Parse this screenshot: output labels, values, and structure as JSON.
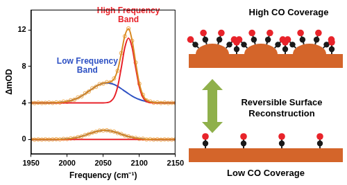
{
  "chart_data": {
    "type": "line",
    "x_label": "Frequency (cm⁻¹)",
    "y_label": "ΔmOD",
    "xlim": [
      1950,
      2150
    ],
    "xticks": [
      1950,
      2000,
      2050,
      2100,
      2150
    ],
    "ylim": [
      -1.6,
      14.2
    ],
    "yticks": [
      0,
      4,
      8,
      12
    ],
    "grid": false,
    "x": [
      1950,
      1955,
      1960,
      1965,
      1970,
      1975,
      1980,
      1985,
      1990,
      1995,
      2000,
      2005,
      2010,
      2015,
      2020,
      2025,
      2030,
      2035,
      2040,
      2045,
      2050,
      2055,
      2060,
      2065,
      2070,
      2075,
      2080,
      2085,
      2090,
      2095,
      2100,
      2105,
      2110,
      2115,
      2120,
      2125,
      2130,
      2135,
      2140,
      2145,
      2150
    ],
    "series": [
      {
        "type": "scatter",
        "marker": "open_circle",
        "color": "#f0a848",
        "values": [
          4.02,
          3.98,
          4.03,
          3.99,
          4.01,
          4.04,
          4.0,
          4.06,
          4.04,
          4.14,
          4.13,
          4.29,
          4.35,
          4.6,
          4.72,
          5.06,
          5.24,
          5.61,
          5.77,
          6.06,
          6.11,
          6.27,
          6.26,
          6.68,
          7.52,
          9.45,
          11.3,
          12.15,
          10.8,
          8.42,
          6.1,
          4.89,
          4.27,
          4.16,
          4.03,
          4.05,
          3.99,
          4.03,
          3.98,
          4.01,
          4.0
        ]
      },
      {
        "type": "scatter",
        "marker": "open_circle",
        "color": "#f0a848",
        "values": [
          0.02,
          -0.02,
          0.01,
          -0.01,
          0.02,
          -0.01,
          0.01,
          0.03,
          0.01,
          0.06,
          0.05,
          0.12,
          0.14,
          0.26,
          0.33,
          0.49,
          0.59,
          0.76,
          0.84,
          0.97,
          0.98,
          1.01,
          0.92,
          0.86,
          0.7,
          0.6,
          0.42,
          0.34,
          0.21,
          0.17,
          0.07,
          0.08,
          0.01,
          0.03,
          -0.01,
          0.02,
          -0.02,
          0.01,
          0.0,
          -0.01,
          0.01
        ]
      },
      {
        "type": "line",
        "line_style": "solid",
        "color": "#2f52c4",
        "values": [
          4.0,
          4.0,
          4.0,
          4.0,
          4.0,
          4.01,
          4.02,
          4.03,
          4.06,
          4.1,
          4.16,
          4.25,
          4.38,
          4.55,
          4.76,
          5.01,
          5.28,
          5.56,
          5.81,
          6.02,
          6.15,
          6.2,
          6.15,
          6.02,
          5.81,
          5.56,
          5.28,
          5.01,
          4.76,
          4.55,
          4.38,
          4.25,
          4.16,
          4.1,
          4.06,
          4.03,
          4.02,
          4.01,
          4.0,
          4.0,
          4.0
        ]
      },
      {
        "type": "line",
        "line_style": "solid",
        "color": "#e8232a",
        "values": [
          4.0,
          4.0,
          4.0,
          4.0,
          4.0,
          4.0,
          4.0,
          4.0,
          4.0,
          4.0,
          4.0,
          4.0,
          4.0,
          4.0,
          4.0,
          4.0,
          4.0,
          4.0,
          4.0,
          4.0,
          4.0,
          4.03,
          4.15,
          4.6,
          5.77,
          7.83,
          10.08,
          11.1,
          10.08,
          7.83,
          5.77,
          4.6,
          4.15,
          4.03,
          4.0,
          4.0,
          4.0,
          4.0,
          4.0,
          4.0,
          4.0
        ]
      },
      {
        "type": "line",
        "line_style": "solid",
        "color": "#2f52c4",
        "values": [
          0.0,
          0.0,
          0.0,
          0.0,
          0.0,
          0.0,
          0.01,
          0.01,
          0.02,
          0.04,
          0.06,
          0.1,
          0.16,
          0.24,
          0.35,
          0.47,
          0.61,
          0.74,
          0.86,
          0.95,
          1.0,
          0.99,
          0.94,
          0.84,
          0.72,
          0.58,
          0.44,
          0.32,
          0.23,
          0.15,
          0.09,
          0.06,
          0.03,
          0.02,
          0.01,
          0.0,
          0.0,
          0.0,
          0.0,
          0.0,
          0.0
        ]
      },
      {
        "type": "line",
        "line_style": "solid",
        "color": "#e8232a",
        "values": [
          0,
          0,
          0,
          0,
          0,
          0,
          0,
          0,
          0,
          0,
          0,
          0,
          0,
          0,
          0,
          0,
          0,
          0,
          0,
          0,
          0,
          0,
          0,
          0,
          0,
          0,
          0,
          0,
          0,
          0,
          0,
          0,
          0,
          0,
          0,
          0,
          0,
          0,
          0,
          0,
          0
        ]
      },
      {
        "type": "line",
        "line_style": "solid",
        "color": "#d98a22",
        "values": [
          4.0,
          4.0,
          4.0,
          4.0,
          4.0,
          4.01,
          4.02,
          4.03,
          4.06,
          4.1,
          4.16,
          4.25,
          4.38,
          4.55,
          4.76,
          5.01,
          5.28,
          5.56,
          5.81,
          6.02,
          6.15,
          6.23,
          6.3,
          6.62,
          7.58,
          9.39,
          11.36,
          12.11,
          10.84,
          8.38,
          6.15,
          4.85,
          4.31,
          4.13,
          4.06,
          4.03,
          4.02,
          4.01,
          4.0,
          4.0,
          4.0
        ]
      },
      {
        "type": "line",
        "line_style": "solid",
        "color": "#d98a22",
        "values": [
          0.0,
          0.0,
          0.0,
          0.0,
          0.0,
          0.0,
          0.01,
          0.01,
          0.02,
          0.04,
          0.06,
          0.1,
          0.16,
          0.24,
          0.35,
          0.47,
          0.61,
          0.74,
          0.86,
          0.95,
          1.0,
          0.99,
          0.94,
          0.84,
          0.72,
          0.58,
          0.44,
          0.32,
          0.23,
          0.15,
          0.09,
          0.06,
          0.03,
          0.02,
          0.01,
          0.0,
          0.0,
          0.0,
          0.0,
          0.0,
          0.0
        ]
      }
    ],
    "annotations": [
      {
        "text": [
          "High Frequency",
          "Band"
        ],
        "x": 2085,
        "y": 12.6,
        "color": "#e8232a"
      },
      {
        "text": [
          "Low Frequency",
          "Band"
        ],
        "x": 2028,
        "y": 7.1,
        "color": "#2f52c4"
      }
    ]
  },
  "diagram": {
    "top_label": "High CO Coverage",
    "arrow_label": [
      "Reversible Surface",
      "Reconstruction"
    ],
    "bottom_label": "Low CO Coverage"
  }
}
